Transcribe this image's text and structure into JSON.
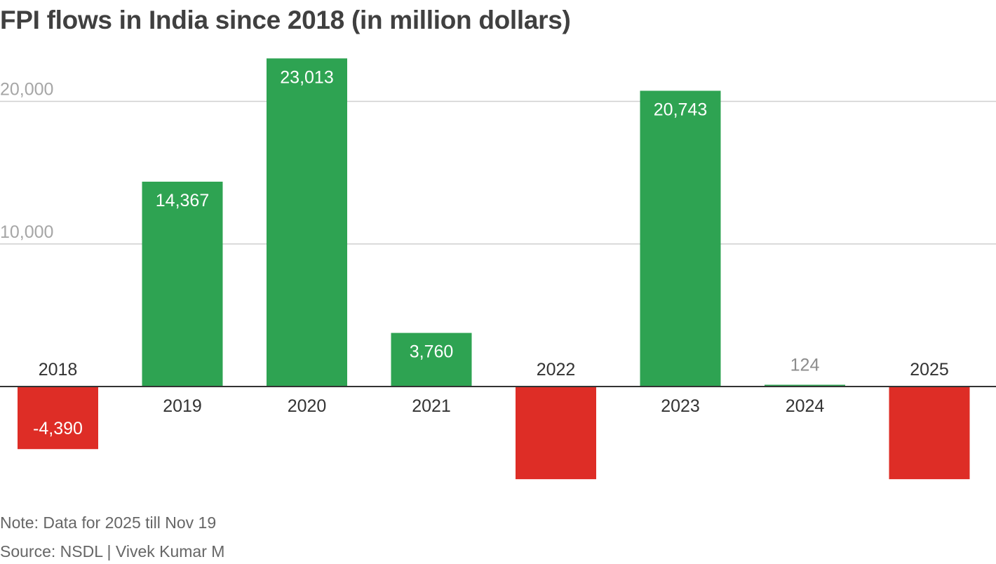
{
  "title": "FPI flows in India since 2018 (in million dollars)",
  "note": "Note: Data for 2025 till Nov 19",
  "source": "Source: NSDL | Vivek Kumar M",
  "colors": {
    "positive": "#2ea352",
    "negative": "#de2d26",
    "grid": "#cfcfcf",
    "axis": "#333333",
    "tick_label": "#a6a6a6"
  },
  "chart_data": {
    "type": "bar",
    "title": "FPI flows in India since 2018 (in million dollars)",
    "categories": [
      "2018",
      "2019",
      "2020",
      "2021",
      "2022",
      "2023",
      "2024",
      "2025"
    ],
    "values": [
      -4390,
      14367,
      23013,
      3760,
      -6500,
      20743,
      124,
      -6500
    ],
    "data_labels": [
      "-4,390",
      "14,367",
      "23,013",
      "3,760",
      "",
      "20,743",
      "124",
      ""
    ],
    "ylim": [
      -8500,
      25000
    ],
    "yticks": [
      10000,
      20000
    ],
    "ytick_labels": [
      "10,000",
      "20,000"
    ],
    "xlabel": "",
    "ylabel": "",
    "grid": true,
    "legend": "none"
  }
}
